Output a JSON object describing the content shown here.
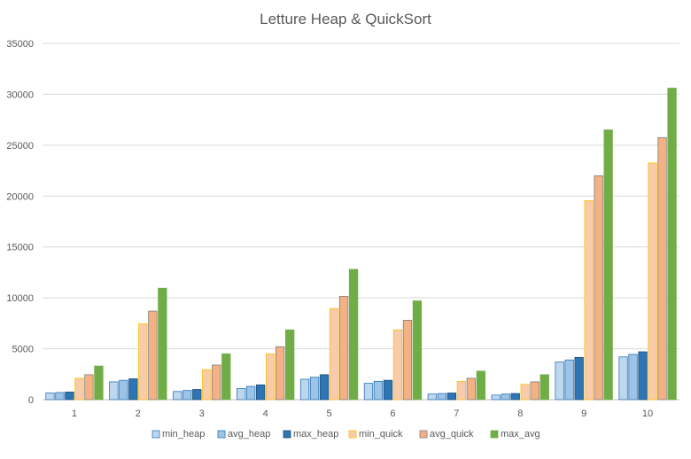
{
  "chart_data": {
    "type": "bar",
    "title": "Letture Heap & QuickSort",
    "xlabel": "",
    "ylabel": "",
    "categories": [
      "1",
      "2",
      "3",
      "4",
      "5",
      "6",
      "7",
      "8",
      "9",
      "10"
    ],
    "ylim": [
      0,
      35000
    ],
    "yticks": [
      "0",
      "5000",
      "10000",
      "15000",
      "20000",
      "25000",
      "30000",
      "35000"
    ],
    "grid": true,
    "legend_position": "bottom",
    "series": [
      {
        "name": "min_heap",
        "color": "#bdd7ee",
        "stroke": "#2e75b6",
        "values": [
          650,
          1750,
          800,
          1100,
          2000,
          1600,
          550,
          450,
          3700,
          4200
        ]
      },
      {
        "name": "avg_heap",
        "color": "#9dc3e6",
        "stroke": "#2e75b6",
        "values": [
          700,
          1900,
          900,
          1300,
          2200,
          1800,
          600,
          550,
          3900,
          4450
        ]
      },
      {
        "name": "max_heap",
        "color": "#2e75b6",
        "stroke": "#1f4e79",
        "values": [
          750,
          2050,
          1000,
          1450,
          2450,
          1900,
          650,
          600,
          4150,
          4700
        ]
      },
      {
        "name": "min_quick",
        "color": "#f8cbad",
        "stroke": "#ffc000",
        "values": [
          2100,
          7450,
          2950,
          4500,
          8950,
          6850,
          1800,
          1500,
          19550,
          23250
        ]
      },
      {
        "name": "avg_quick",
        "color": "#f4b183",
        "stroke": "#7f7f7f",
        "values": [
          2450,
          8700,
          3400,
          5200,
          10150,
          7800,
          2100,
          1750,
          22000,
          25750
        ]
      },
      {
        "name": "max_avg",
        "color": "#70ad47",
        "stroke": "#70ad47",
        "values": [
          3300,
          10950,
          4500,
          6850,
          12800,
          9700,
          2800,
          2450,
          26500,
          30600
        ]
      }
    ]
  }
}
